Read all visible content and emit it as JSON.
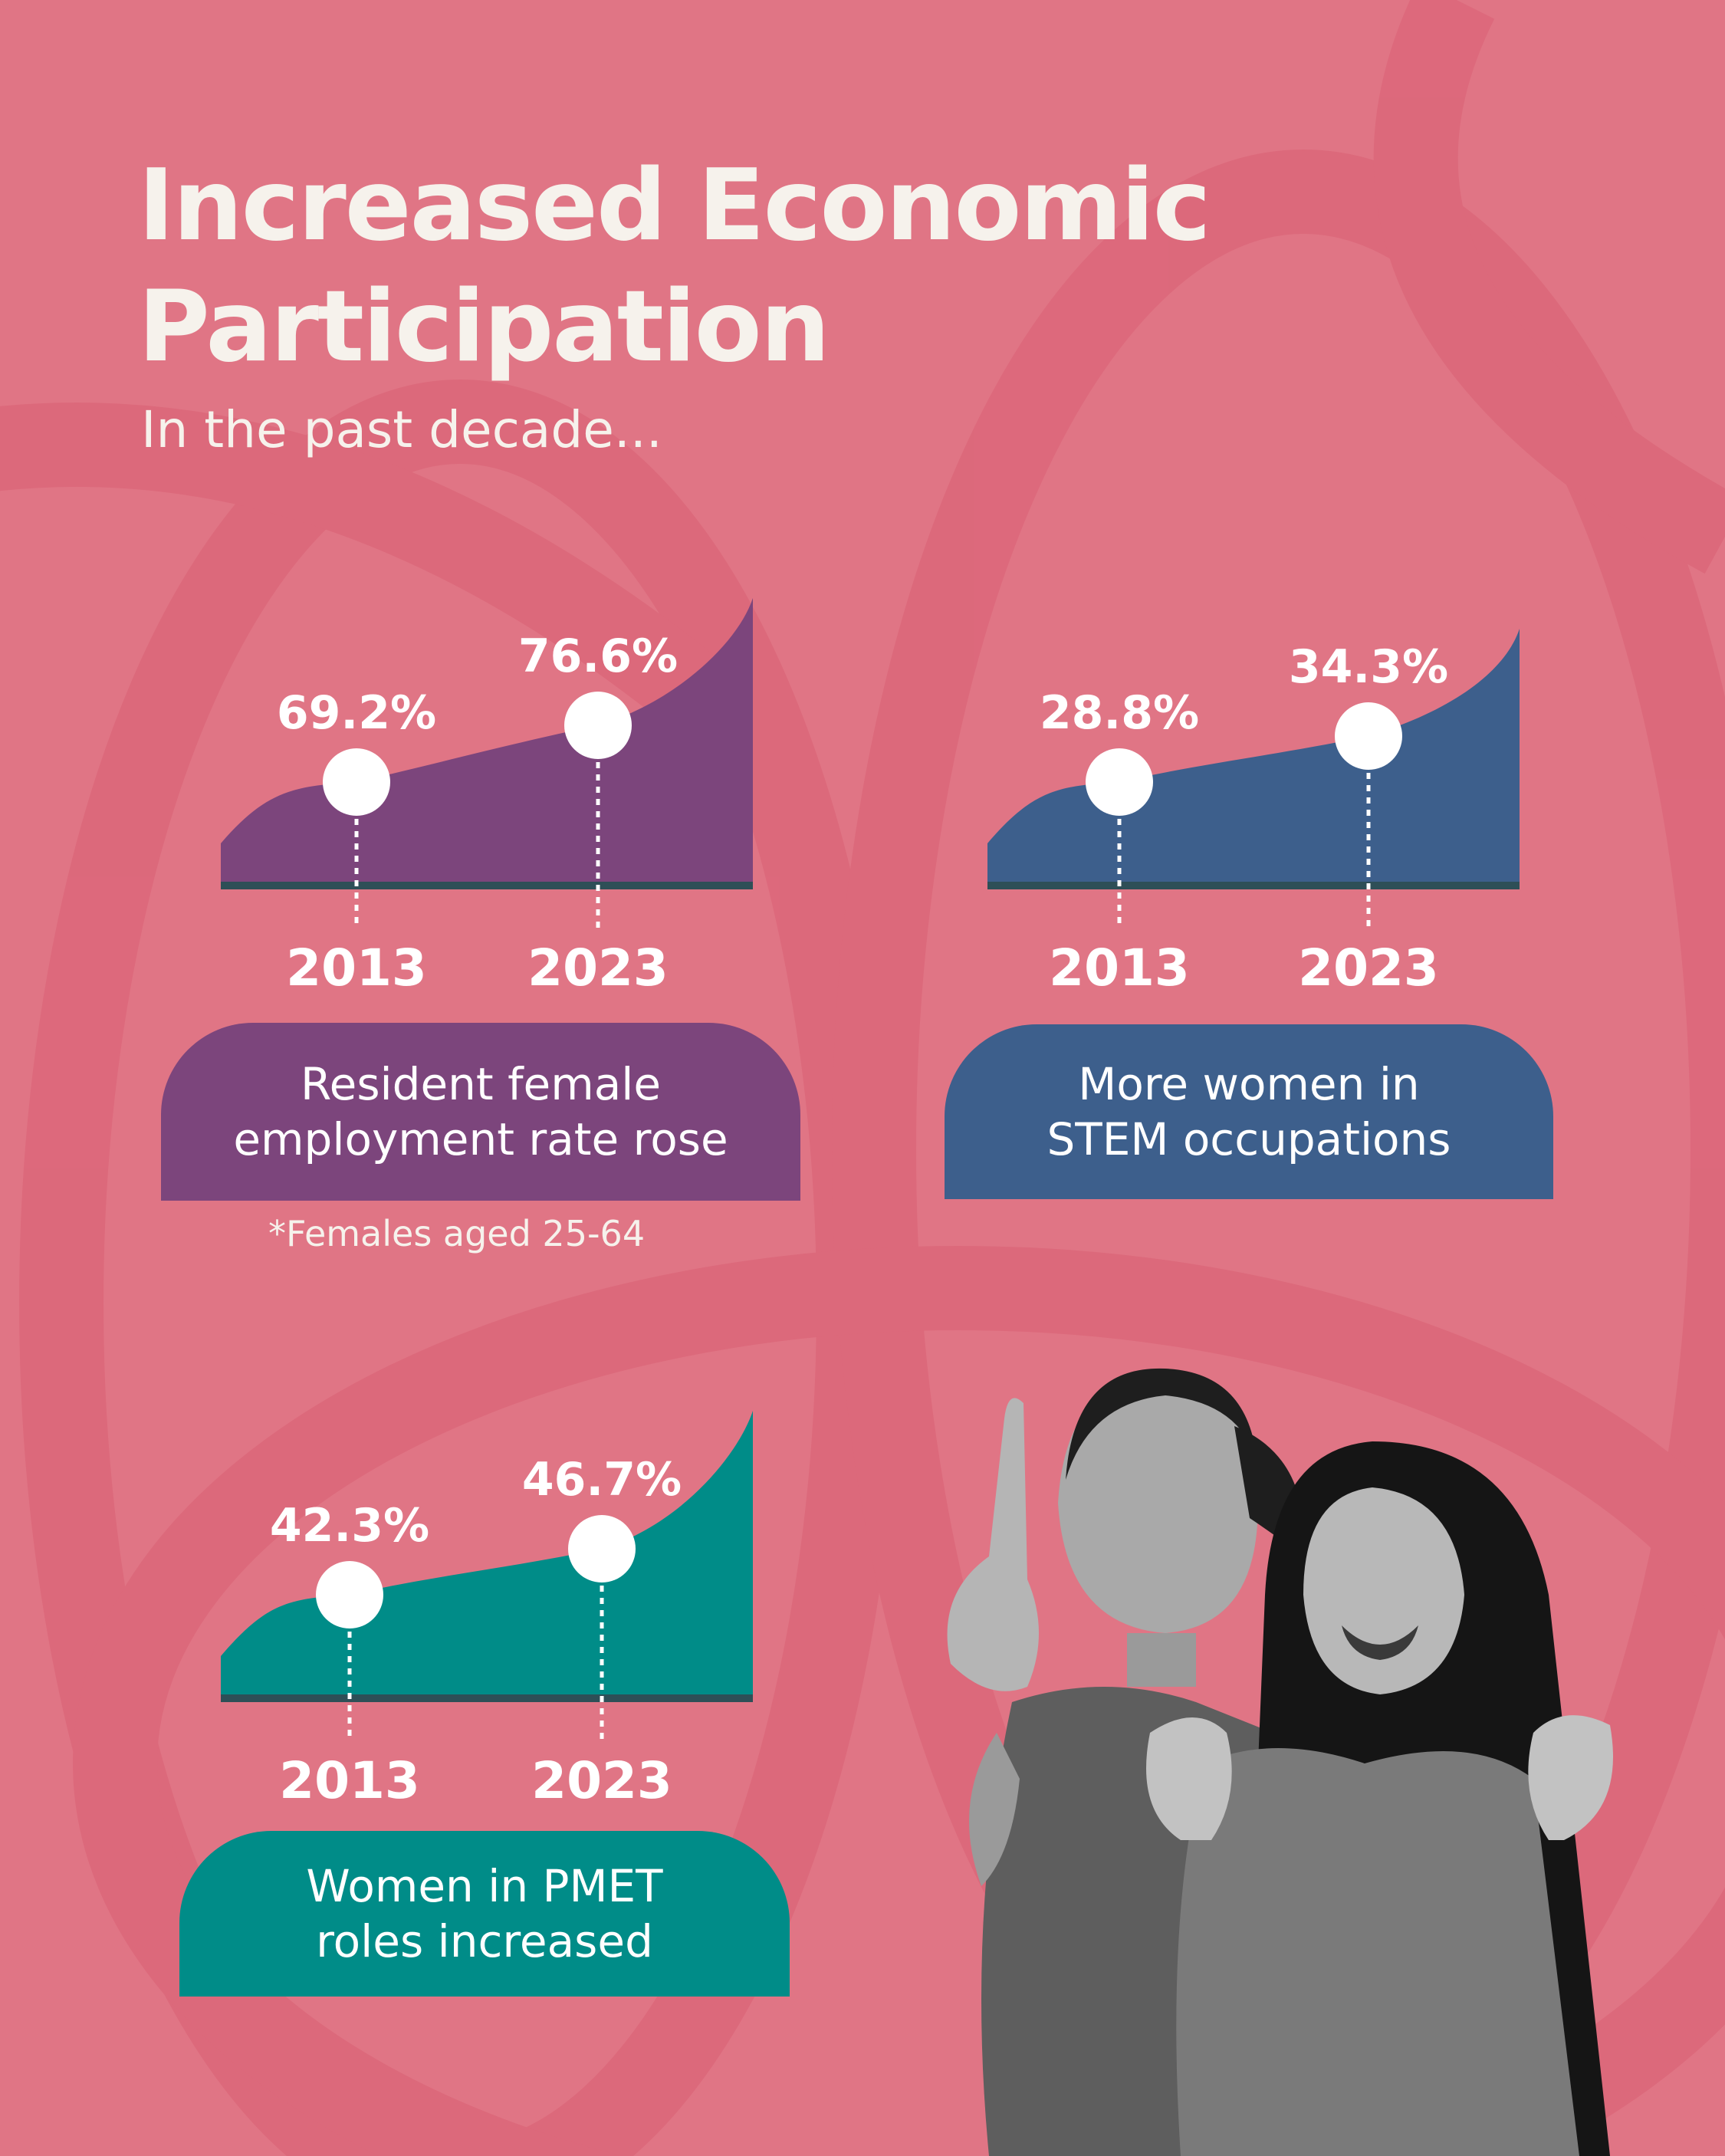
{
  "header": {
    "title": "Increased Economic Participation",
    "subtitle": "In the past decade..."
  },
  "colors": {
    "background": "#e07585",
    "purple": "#7c457c",
    "blue": "#3d5f8c",
    "teal": "#008c88",
    "baseline": "#2e4f57"
  },
  "chart_data": [
    {
      "type": "area",
      "x": [
        "2013",
        "2023"
      ],
      "values": [
        69.2,
        76.6
      ],
      "data_labels": [
        "69.2%",
        "76.6%"
      ],
      "caption": "Resident female employment rate rose",
      "footnote": "*Females aged 25-64",
      "color": "#7c457c"
    },
    {
      "type": "area",
      "x": [
        "2013",
        "2023"
      ],
      "values": [
        28.8,
        34.3
      ],
      "data_labels": [
        "28.8%",
        "34.3%"
      ],
      "caption": "More women in STEM occupations",
      "color": "#3d5f8c"
    },
    {
      "type": "area",
      "x": [
        "2013",
        "2023"
      ],
      "values": [
        42.3,
        46.7
      ],
      "data_labels": [
        "42.3%",
        "46.7%"
      ],
      "caption": "Women in PMET roles increased",
      "color": "#008c88"
    }
  ],
  "illustration": {
    "subject": "two-women-photo",
    "style": "grayscale"
  }
}
